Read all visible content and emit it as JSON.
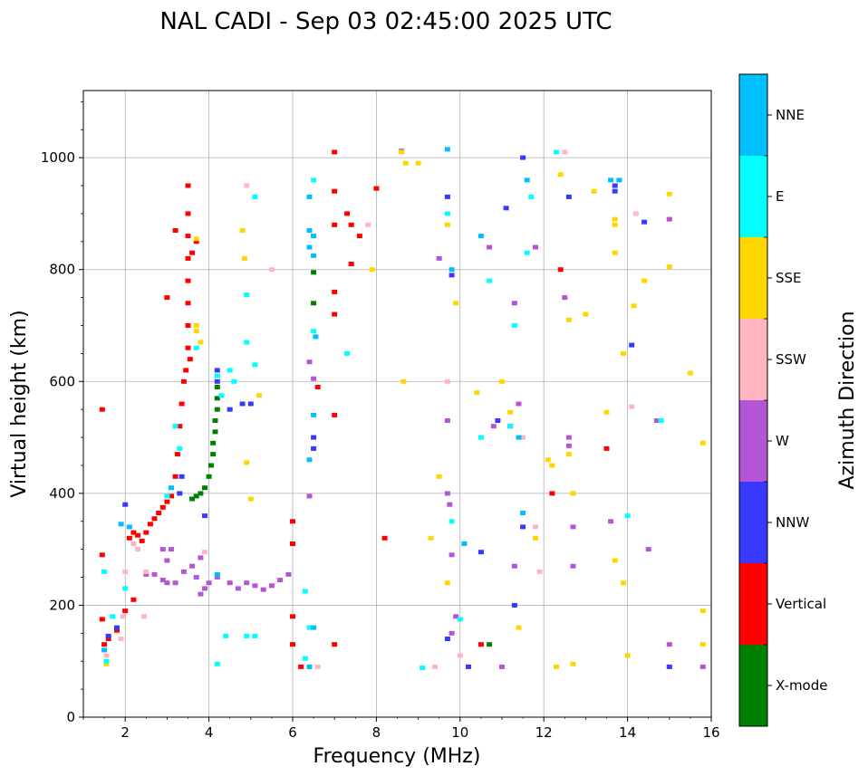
{
  "chart_data": {
    "type": "scatter",
    "title": "NAL CADI - Sep 03 02:45:00 2025 UTC",
    "xlabel": "Frequency (MHz)",
    "ylabel": "Virtual height (km)",
    "xlim": [
      1,
      16
    ],
    "ylim": [
      0,
      1120
    ],
    "xticks": [
      "2",
      "4",
      "6",
      "8",
      "10",
      "12",
      "14",
      "16"
    ],
    "yticks": [
      "0",
      "200",
      "400",
      "600",
      "800",
      "1000"
    ],
    "grid": true,
    "colorbar": {
      "label": "Azimuth Direction",
      "categories": [
        "NNE",
        "E",
        "SSE",
        "SSW",
        "W",
        "NNW",
        "Vertical",
        "X-mode"
      ],
      "colors": [
        "#00bfff",
        "#00ffff",
        "#ffd700",
        "#ffb6c1",
        "#b455d6",
        "#3838ff",
        "#ff0000",
        "#008000"
      ]
    },
    "series": [
      {
        "name": "Vertical",
        "color": "#ff0000",
        "points": [
          [
            1.45,
            550
          ],
          [
            1.45,
            290
          ],
          [
            1.45,
            175
          ],
          [
            1.5,
            130
          ],
          [
            1.6,
            140
          ],
          [
            1.8,
            155
          ],
          [
            2.0,
            190
          ],
          [
            2.2,
            210
          ],
          [
            2.1,
            320
          ],
          [
            2.2,
            330
          ],
          [
            2.3,
            325
          ],
          [
            2.4,
            315
          ],
          [
            2.5,
            330
          ],
          [
            2.6,
            345
          ],
          [
            2.7,
            355
          ],
          [
            2.8,
            365
          ],
          [
            2.9,
            375
          ],
          [
            3.0,
            385
          ],
          [
            3.1,
            395
          ],
          [
            3.2,
            430
          ],
          [
            3.25,
            470
          ],
          [
            3.3,
            520
          ],
          [
            3.35,
            560
          ],
          [
            3.4,
            600
          ],
          [
            3.45,
            620
          ],
          [
            3.5,
            660
          ],
          [
            3.5,
            700
          ],
          [
            3.5,
            740
          ],
          [
            3.5,
            780
          ],
          [
            3.5,
            820
          ],
          [
            3.5,
            860
          ],
          [
            3.5,
            900
          ],
          [
            3.5,
            950
          ],
          [
            3.55,
            640
          ],
          [
            3.6,
            830
          ],
          [
            3.7,
            850
          ],
          [
            3.2,
            870
          ],
          [
            3.0,
            750
          ],
          [
            6.0,
            350
          ],
          [
            6.0,
            310
          ],
          [
            6.0,
            180
          ],
          [
            6.0,
            130
          ],
          [
            6.2,
            90
          ],
          [
            6.6,
            590
          ],
          [
            7.0,
            540
          ],
          [
            7.0,
            130
          ],
          [
            7.0,
            720
          ],
          [
            7.0,
            760
          ],
          [
            7.0,
            880
          ],
          [
            7.0,
            940
          ],
          [
            7.0,
            1010
          ],
          [
            7.3,
            900
          ],
          [
            7.4,
            880
          ],
          [
            7.6,
            860
          ],
          [
            7.4,
            810
          ],
          [
            8.0,
            945
          ],
          [
            8.2,
            320
          ],
          [
            10.5,
            130
          ],
          [
            12.2,
            400
          ],
          [
            12.4,
            800
          ],
          [
            13.5,
            480
          ]
        ]
      },
      {
        "name": "X-mode",
        "color": "#008000",
        "points": [
          [
            3.6,
            390
          ],
          [
            3.7,
            395
          ],
          [
            3.8,
            400
          ],
          [
            3.9,
            410
          ],
          [
            4.0,
            430
          ],
          [
            4.05,
            450
          ],
          [
            4.1,
            470
          ],
          [
            4.1,
            490
          ],
          [
            4.15,
            510
          ],
          [
            4.15,
            530
          ],
          [
            4.2,
            550
          ],
          [
            4.2,
            570
          ],
          [
            4.2,
            590
          ],
          [
            6.5,
            740
          ],
          [
            6.5,
            795
          ],
          [
            10.7,
            130
          ]
        ]
      },
      {
        "name": "W",
        "color": "#b455d6",
        "points": [
          [
            2.5,
            255
          ],
          [
            2.7,
            255
          ],
          [
            2.9,
            245
          ],
          [
            3.0,
            240
          ],
          [
            3.2,
            240
          ],
          [
            3.4,
            260
          ],
          [
            3.6,
            270
          ],
          [
            3.8,
            285
          ],
          [
            3.9,
            230
          ],
          [
            4.0,
            240
          ],
          [
            4.2,
            250
          ],
          [
            4.5,
            240
          ],
          [
            4.7,
            230
          ],
          [
            4.9,
            240
          ],
          [
            5.1,
            235
          ],
          [
            5.3,
            228
          ],
          [
            5.5,
            235
          ],
          [
            5.7,
            245
          ],
          [
            5.9,
            255
          ],
          [
            3.7,
            250
          ],
          [
            3.8,
            220
          ],
          [
            3.0,
            280
          ],
          [
            2.9,
            300
          ],
          [
            3.1,
            300
          ],
          [
            6.4,
            395
          ],
          [
            6.5,
            605
          ],
          [
            6.4,
            635
          ],
          [
            9.7,
            530
          ],
          [
            9.7,
            400
          ],
          [
            9.75,
            380
          ],
          [
            9.8,
            290
          ],
          [
            9.8,
            150
          ],
          [
            9.9,
            180
          ],
          [
            10.7,
            840
          ],
          [
            10.8,
            520
          ],
          [
            11.0,
            90
          ],
          [
            11.2,
            520
          ],
          [
            11.3,
            270
          ],
          [
            11.3,
            740
          ],
          [
            11.4,
            560
          ],
          [
            12.5,
            750
          ],
          [
            12.6,
            500
          ],
          [
            12.6,
            485
          ],
          [
            12.7,
            340
          ],
          [
            12.7,
            270
          ],
          [
            13.6,
            350
          ],
          [
            14.5,
            300
          ],
          [
            14.7,
            530
          ],
          [
            15.0,
            130
          ],
          [
            15.0,
            890
          ],
          [
            15.8,
            90
          ],
          [
            8.6,
            1012
          ],
          [
            9.5,
            820
          ],
          [
            11.8,
            840
          ]
        ]
      },
      {
        "name": "NNW",
        "color": "#3838ff",
        "points": [
          [
            1.6,
            145
          ],
          [
            1.8,
            160
          ],
          [
            2.0,
            380
          ],
          [
            3.3,
            400
          ],
          [
            3.35,
            430
          ],
          [
            3.9,
            360
          ],
          [
            4.2,
            600
          ],
          [
            4.2,
            620
          ],
          [
            4.5,
            550
          ],
          [
            4.8,
            560
          ],
          [
            5.0,
            560
          ],
          [
            6.5,
            500
          ],
          [
            6.5,
            480
          ],
          [
            9.7,
            930
          ],
          [
            9.8,
            790
          ],
          [
            10.2,
            90
          ],
          [
            10.9,
            530
          ],
          [
            11.1,
            910
          ],
          [
            11.5,
            1000
          ],
          [
            11.5,
            340
          ],
          [
            11.3,
            200
          ],
          [
            12.6,
            930
          ],
          [
            13.7,
            950
          ],
          [
            13.7,
            940
          ],
          [
            14.1,
            665
          ],
          [
            14.4,
            885
          ],
          [
            15.0,
            90
          ],
          [
            10.5,
            295
          ],
          [
            9.7,
            140
          ]
        ]
      },
      {
        "name": "SSW",
        "color": "#ffb6c1",
        "points": [
          [
            1.55,
            110
          ],
          [
            1.9,
            140
          ],
          [
            1.95,
            180
          ],
          [
            2.0,
            260
          ],
          [
            2.1,
            340
          ],
          [
            2.2,
            310
          ],
          [
            2.3,
            300
          ],
          [
            2.45,
            180
          ],
          [
            2.5,
            260
          ],
          [
            3.9,
            295
          ],
          [
            4.9,
            950
          ],
          [
            5.5,
            800
          ],
          [
            6.6,
            90
          ],
          [
            7.8,
            880
          ],
          [
            9.4,
            90
          ],
          [
            9.7,
            600
          ],
          [
            10.0,
            110
          ],
          [
            11.5,
            500
          ],
          [
            11.8,
            340
          ],
          [
            12.5,
            1010
          ],
          [
            14.1,
            555
          ],
          [
            14.2,
            900
          ],
          [
            11.9,
            260
          ]
        ]
      },
      {
        "name": "SSE",
        "color": "#ffd700",
        "points": [
          [
            1.55,
            95
          ],
          [
            3.7,
            690
          ],
          [
            3.8,
            670
          ],
          [
            3.7,
            700
          ],
          [
            3.7,
            855
          ],
          [
            4.8,
            870
          ],
          [
            4.85,
            820
          ],
          [
            4.9,
            455
          ],
          [
            5.0,
            390
          ],
          [
            5.2,
            575
          ],
          [
            7.9,
            800
          ],
          [
            8.6,
            1010
          ],
          [
            8.7,
            990
          ],
          [
            8.65,
            600
          ],
          [
            9.0,
            990
          ],
          [
            9.3,
            320
          ],
          [
            9.5,
            430
          ],
          [
            9.7,
            880
          ],
          [
            9.7,
            240
          ],
          [
            9.9,
            740
          ],
          [
            10.4,
            580
          ],
          [
            11.0,
            600
          ],
          [
            11.2,
            545
          ],
          [
            11.4,
            160
          ],
          [
            11.8,
            320
          ],
          [
            12.1,
            460
          ],
          [
            12.2,
            450
          ],
          [
            12.3,
            90
          ],
          [
            12.4,
            970
          ],
          [
            12.6,
            710
          ],
          [
            12.6,
            470
          ],
          [
            12.7,
            400
          ],
          [
            12.7,
            95
          ],
          [
            13.0,
            720
          ],
          [
            13.2,
            940
          ],
          [
            13.5,
            545
          ],
          [
            13.7,
            890
          ],
          [
            13.7,
            880
          ],
          [
            13.7,
            830
          ],
          [
            13.7,
            280
          ],
          [
            13.9,
            650
          ],
          [
            13.9,
            240
          ],
          [
            14.0,
            110
          ],
          [
            14.15,
            735
          ],
          [
            14.4,
            780
          ],
          [
            15.0,
            935
          ],
          [
            15.0,
            805
          ],
          [
            15.5,
            615
          ],
          [
            15.8,
            490
          ],
          [
            15.8,
            190
          ],
          [
            15.8,
            130
          ]
        ]
      },
      {
        "name": "E",
        "color": "#00ffff",
        "points": [
          [
            1.5,
            260
          ],
          [
            1.55,
            100
          ],
          [
            1.7,
            180
          ],
          [
            2.0,
            230
          ],
          [
            3.0,
            395
          ],
          [
            3.2,
            520
          ],
          [
            3.3,
            480
          ],
          [
            3.7,
            660
          ],
          [
            4.2,
            610
          ],
          [
            4.3,
            575
          ],
          [
            4.5,
            620
          ],
          [
            4.6,
            600
          ],
          [
            4.9,
            670
          ],
          [
            5.1,
            630
          ],
          [
            4.9,
            755
          ],
          [
            5.1,
            930
          ],
          [
            6.3,
            225
          ],
          [
            6.5,
            690
          ],
          [
            6.5,
            960
          ],
          [
            9.7,
            900
          ],
          [
            9.8,
            350
          ],
          [
            10.0,
            175
          ],
          [
            10.5,
            500
          ],
          [
            10.7,
            780
          ],
          [
            11.2,
            520
          ],
          [
            11.3,
            700
          ],
          [
            11.6,
            830
          ],
          [
            11.7,
            930
          ],
          [
            12.3,
            1010
          ],
          [
            14.0,
            360
          ],
          [
            14.8,
            530
          ],
          [
            7.3,
            650
          ],
          [
            6.4,
            160
          ],
          [
            6.3,
            105
          ],
          [
            5.1,
            145
          ],
          [
            4.9,
            145
          ],
          [
            4.4,
            145
          ],
          [
            4.2,
            95
          ],
          [
            9.1,
            88
          ]
        ]
      },
      {
        "name": "NNE",
        "color": "#00bfff",
        "points": [
          [
            1.5,
            120
          ],
          [
            1.9,
            345
          ],
          [
            2.1,
            340
          ],
          [
            3.1,
            410
          ],
          [
            4.2,
            255
          ],
          [
            6.4,
            930
          ],
          [
            6.4,
            870
          ],
          [
            6.5,
            860
          ],
          [
            6.4,
            840
          ],
          [
            6.5,
            825
          ],
          [
            6.55,
            680
          ],
          [
            6.5,
            540
          ],
          [
            6.4,
            460
          ],
          [
            6.5,
            160
          ],
          [
            6.4,
            90
          ],
          [
            9.7,
            1015
          ],
          [
            9.8,
            800
          ],
          [
            10.1,
            310
          ],
          [
            10.5,
            860
          ],
          [
            11.4,
            500
          ],
          [
            11.5,
            365
          ],
          [
            11.6,
            960
          ],
          [
            13.8,
            960
          ],
          [
            13.6,
            960
          ]
        ]
      }
    ]
  }
}
